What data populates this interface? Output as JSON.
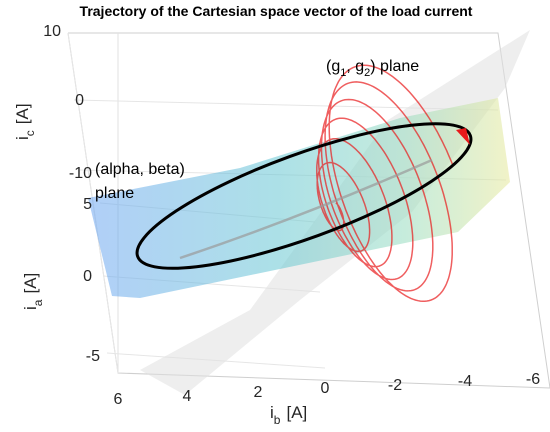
{
  "chart_data": {
    "type": "line3d",
    "title": "Trajectory of the Cartesian space vector of the load current",
    "axes": {
      "x": {
        "name": "i",
        "sub": "b",
        "unit": "[A]",
        "ticks": [
          "6",
          "4",
          "2",
          "0",
          "-2",
          "-4",
          "-6"
        ],
        "range": [
          -6,
          6
        ]
      },
      "y": {
        "name": "i",
        "sub": "a",
        "unit": "[A]",
        "ticks": [
          "5",
          "0",
          "-5"
        ],
        "range": [
          -6,
          6
        ]
      },
      "z": {
        "name": "i",
        "sub": "c",
        "unit": "[A]",
        "ticks": [
          "10",
          "0",
          "-10"
        ],
        "range": [
          -10,
          10
        ]
      }
    },
    "grid": true,
    "annotations": {
      "plane1_open": "(g",
      "plane1_sub1": "1",
      "plane1_mid": ", g",
      "plane1_sub2": "2",
      "plane1_close": ") plane",
      "plane2_line1": "(alpha, beta)",
      "plane2_line2": "plane"
    },
    "series": [
      {
        "role": "steady-state trajectory in (alpha, beta) plane",
        "color": "#000000",
        "amplitude": 5.2
      },
      {
        "role": "transient trajectory",
        "color": "#e8191b",
        "amplitude_start": 0.5,
        "amplitude_end": 4.6,
        "turns": 6
      }
    ],
    "surfaces": [
      {
        "role": "(alpha, beta) plane",
        "colormap": "parula-light"
      },
      {
        "role": "(g1, g2) plane",
        "color": "#e6e6e6"
      }
    ]
  }
}
